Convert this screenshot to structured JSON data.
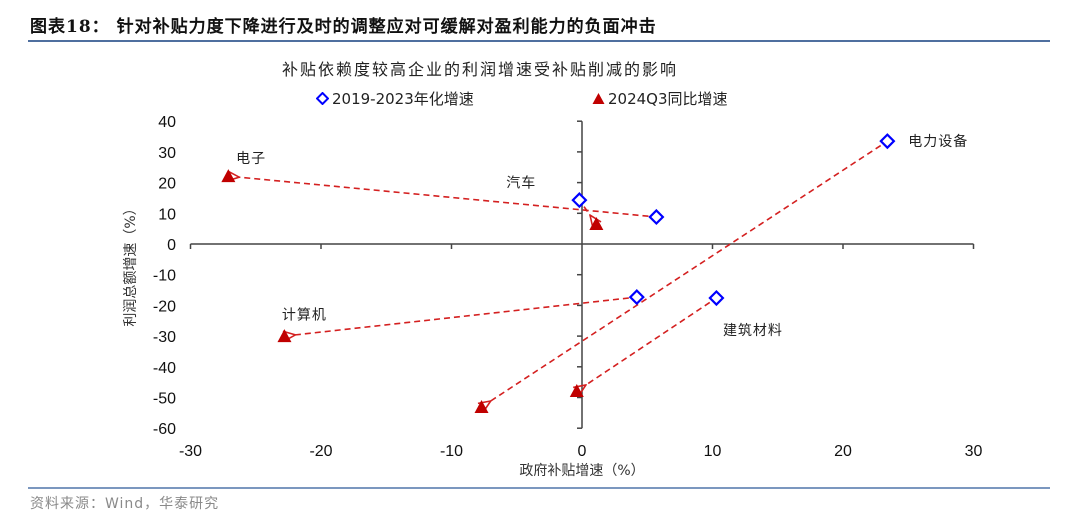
{
  "figure": {
    "title": "图表18：  针对补贴力度下降进行及时的调整应对可缓解对盈利能力的负面冲击",
    "source": "资料来源：Wind，华泰研究"
  },
  "chart_data": {
    "type": "scatter",
    "title": "补贴依赖度较高企业的利润增速受补贴削减的影响",
    "xlabel": "政府补贴增速（%）",
    "ylabel": "利润总额增速（%）",
    "xlim": [
      -30,
      30
    ],
    "ylim": [
      -60,
      40
    ],
    "xticks": [
      -30,
      -20,
      -10,
      0,
      10,
      20,
      30
    ],
    "yticks": [
      40,
      30,
      20,
      10,
      0,
      -10,
      -20,
      -30,
      -40,
      -50,
      -60
    ],
    "grid": false,
    "legend_position": "top",
    "series": [
      {
        "name": "2019-2023年化增速",
        "marker": "diamond-open",
        "color": "#0000ff",
        "points": [
          {
            "label": "电子",
            "x": 5.7,
            "y": 8.8
          },
          {
            "label": "汽车",
            "x": -0.2,
            "y": 14.3
          },
          {
            "label": "计算机",
            "x": 4.2,
            "y": -17.3
          },
          {
            "label": "电力设备",
            "x": 23.4,
            "y": 33.5
          },
          {
            "label": "建筑材料",
            "x": 10.3,
            "y": -17.6
          }
        ]
      },
      {
        "name": "2024Q3同比增速",
        "marker": "triangle-filled",
        "color": "#c00000",
        "points": [
          {
            "label": "电子",
            "x": -27.1,
            "y": 22.1
          },
          {
            "label": "汽车",
            "x": 1.1,
            "y": 6.5
          },
          {
            "label": "计算机",
            "x": -22.8,
            "y": -30.0
          },
          {
            "label": "电力设备",
            "x": -7.7,
            "y": -53.1
          },
          {
            "label": "建筑材料",
            "x": -0.4,
            "y": -47.9
          }
        ]
      }
    ],
    "arrows": {
      "style": "dashed",
      "color": "#d42020",
      "from_series": "2019-2023年化增速",
      "to_series": "2024Q3同比增速"
    },
    "annotations": [
      {
        "text": "电子",
        "x": -26.5,
        "y": 28
      },
      {
        "text": "汽车",
        "x": -5.8,
        "y": 20
      },
      {
        "text": "计算机",
        "x": -23,
        "y": -23
      },
      {
        "text": "电力设备",
        "x": 25,
        "y": 33.5
      },
      {
        "text": "建筑材料",
        "x": 10.8,
        "y": -28
      }
    ]
  }
}
